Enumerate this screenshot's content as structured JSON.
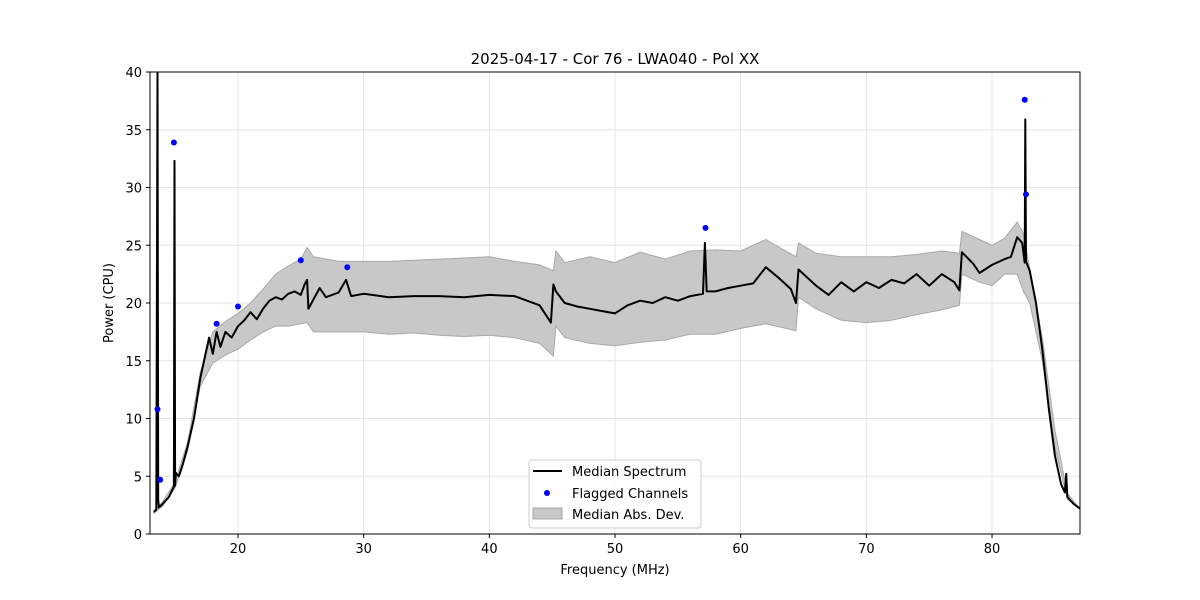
{
  "chart_data": {
    "type": "line",
    "title": "2025-04-17 - Cor 76 - LWA040 - Pol XX",
    "xlabel": "Frequency (MHz)",
    "ylabel": "Power (CPU)",
    "xlim": [
      13,
      87
    ],
    "ylim": [
      0,
      40
    ],
    "xticks": [
      20,
      30,
      40,
      50,
      60,
      70,
      80
    ],
    "yticks": [
      0,
      5,
      10,
      15,
      20,
      25,
      30,
      35,
      40
    ],
    "grid": true,
    "legend": {
      "placement": "bottom-center",
      "entries": [
        "Median Spectrum",
        "Flagged Channels",
        "Median Abs. Dev."
      ]
    },
    "colors": {
      "median": "#000000",
      "flagged": "#0000ff",
      "band_fill": "#c8c8c8",
      "band_edge": "#a8a8a8",
      "grid": "#e5e5e5"
    },
    "series": [
      {
        "name": "Median Spectrum",
        "x": [
          13.3,
          13.5,
          13.6,
          13.65,
          13.7,
          13.8,
          14.0,
          14.5,
          14.9,
          14.95,
          15.0,
          15.05,
          15.3,
          15.6,
          16.0,
          16.5,
          17.0,
          17.4,
          17.7,
          18.0,
          18.3,
          18.6,
          19.0,
          19.5,
          20.0,
          20.5,
          21.0,
          21.5,
          22.0,
          22.5,
          23.0,
          23.5,
          24.0,
          24.5,
          25.0,
          25.3,
          25.5,
          25.6,
          26.0,
          26.5,
          27.0,
          28.0,
          28.6,
          29.0,
          30.0,
          32.0,
          34.0,
          36.0,
          38.0,
          40.0,
          42.0,
          44.0,
          44.9,
          45.1,
          45.3,
          46.0,
          47.0,
          48.0,
          49.0,
          50.0,
          51.0,
          52.0,
          53.0,
          54.0,
          55.0,
          56.0,
          57.0,
          57.15,
          57.3,
          58.0,
          59.0,
          60.0,
          61.0,
          62.0,
          63.0,
          64.0,
          64.4,
          64.6,
          66.0,
          67.0,
          68.0,
          69.0,
          70.0,
          71.0,
          72.0,
          73.0,
          74.0,
          75.0,
          76.0,
          77.0,
          77.4,
          77.6,
          78.5,
          79.0,
          80.0,
          81.0,
          81.5,
          82.0,
          82.4,
          82.6,
          82.65,
          82.7,
          83.0,
          83.5,
          84.0,
          84.5,
          85.0,
          85.5,
          85.8,
          85.9,
          86.0,
          86.5,
          87.0
        ],
        "y": [
          1.9,
          2.1,
          40.0,
          3.0,
          2.3,
          2.4,
          2.6,
          3.2,
          4.1,
          32.3,
          4.2,
          5.3,
          5.0,
          6.0,
          7.6,
          10.0,
          13.5,
          15.5,
          17.0,
          15.6,
          17.5,
          16.2,
          17.5,
          17.0,
          18.0,
          18.5,
          19.2,
          18.6,
          19.5,
          20.2,
          20.5,
          20.3,
          20.8,
          21.0,
          20.7,
          21.6,
          22.0,
          19.5,
          20.3,
          21.3,
          20.5,
          20.9,
          22.0,
          20.6,
          20.8,
          20.5,
          20.6,
          20.6,
          20.5,
          20.7,
          20.6,
          19.8,
          18.3,
          21.6,
          21.0,
          20.0,
          19.7,
          19.5,
          19.3,
          19.1,
          19.8,
          20.2,
          20.0,
          20.5,
          20.2,
          20.6,
          20.8,
          25.2,
          21.0,
          21.0,
          21.3,
          21.5,
          21.7,
          23.1,
          22.2,
          21.2,
          20.0,
          22.9,
          21.5,
          20.7,
          21.8,
          21.0,
          21.8,
          21.3,
          22.0,
          21.7,
          22.5,
          21.5,
          22.5,
          21.8,
          21.1,
          24.4,
          23.4,
          22.6,
          23.3,
          23.8,
          24.0,
          25.7,
          25.2,
          23.5,
          35.9,
          23.6,
          22.8,
          20.0,
          16.0,
          11.0,
          6.8,
          4.3,
          3.6,
          5.2,
          3.2,
          2.6,
          2.2
        ]
      },
      {
        "name": "Flagged Channels",
        "x": [
          13.6,
          13.8,
          14.9,
          18.3,
          20.0,
          25.0,
          28.7,
          57.2,
          82.6,
          82.7
        ],
        "y": [
          10.8,
          4.7,
          33.9,
          18.2,
          19.7,
          23.7,
          23.1,
          26.5,
          37.6,
          29.4
        ]
      },
      {
        "name": "Median Abs. Dev.",
        "x": [
          13.3,
          14.0,
          15.0,
          16.0,
          17.0,
          18.0,
          19.0,
          20.0,
          21.0,
          22.0,
          23.0,
          24.0,
          25.0,
          25.5,
          26.0,
          28.0,
          30.0,
          32.0,
          34.0,
          36.0,
          38.0,
          40.0,
          42.0,
          44.0,
          45.1,
          45.3,
          46.0,
          48.0,
          50.0,
          52.0,
          54.0,
          56.0,
          58.0,
          60.0,
          62.0,
          64.4,
          64.6,
          66.0,
          68.0,
          70.0,
          72.0,
          74.0,
          76.0,
          77.4,
          77.6,
          79.0,
          80.0,
          81.0,
          82.0,
          82.5,
          83.0,
          84.0,
          85.0,
          86.0,
          87.0
        ],
        "upper": [
          2.0,
          2.8,
          4.5,
          8.0,
          14.0,
          17.5,
          18.4,
          19.1,
          20.0,
          21.2,
          22.5,
          23.2,
          23.8,
          24.8,
          24.0,
          23.6,
          23.6,
          23.6,
          23.7,
          23.8,
          23.9,
          24.0,
          23.6,
          23.3,
          22.8,
          24.5,
          23.5,
          24.0,
          23.5,
          24.4,
          23.8,
          24.5,
          24.6,
          24.5,
          25.5,
          24.0,
          25.2,
          24.3,
          24.0,
          24.0,
          24.0,
          24.2,
          24.5,
          24.3,
          26.2,
          25.5,
          25.0,
          25.6,
          27.0,
          26.0,
          23.0,
          17.0,
          9.0,
          3.5,
          2.2
        ],
        "lower": [
          1.8,
          2.4,
          4.0,
          7.2,
          12.8,
          14.8,
          15.5,
          16.0,
          16.8,
          17.5,
          18.0,
          18.0,
          18.2,
          18.3,
          17.5,
          17.5,
          17.5,
          17.3,
          17.4,
          17.2,
          17.1,
          17.2,
          17.0,
          16.5,
          15.4,
          18.0,
          17.0,
          16.5,
          16.3,
          16.6,
          16.8,
          17.3,
          17.3,
          17.8,
          18.2,
          17.6,
          20.5,
          19.5,
          18.5,
          18.3,
          18.5,
          19.0,
          19.4,
          19.8,
          22.5,
          21.8,
          21.5,
          22.5,
          22.5,
          21.0,
          20.0,
          15.0,
          7.5,
          3.0,
          2.2
        ]
      }
    ]
  }
}
